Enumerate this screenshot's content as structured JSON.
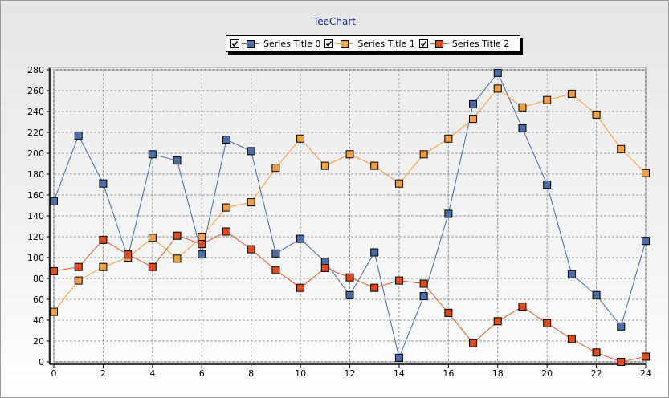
{
  "chart_data": {
    "type": "line",
    "title": "TeeChart",
    "xlabel": "",
    "ylabel": "",
    "xlim": [
      0,
      24
    ],
    "ylim": [
      0,
      280
    ],
    "x_ticks": [
      "0",
      "2",
      "4",
      "6",
      "8",
      "10",
      "12",
      "14",
      "16",
      "18",
      "20",
      "22",
      "24"
    ],
    "y_ticks": [
      "0",
      "20",
      "40",
      "60",
      "80",
      "100",
      "120",
      "140",
      "160",
      "180",
      "200",
      "220",
      "240",
      "260",
      "280"
    ],
    "grid": true,
    "legend": "top",
    "x": [
      0,
      1,
      2,
      3,
      4,
      5,
      6,
      7,
      8,
      9,
      10,
      11,
      12,
      13,
      14,
      15,
      16,
      17,
      18,
      19,
      20,
      21,
      22,
      23,
      24
    ],
    "series": [
      {
        "name": "Series Title 0",
        "color": "#4a6aa5",
        "marker_color": "#4e6ea8",
        "checked": true,
        "values": [
          154,
          217,
          171,
          100,
          199,
          193,
          103,
          213,
          202,
          104,
          118,
          96,
          64,
          105,
          4,
          63,
          142,
          247,
          277,
          224,
          170,
          84,
          64,
          34,
          116
        ]
      },
      {
        "name": "Series Title 1",
        "color": "#f0a040",
        "marker_color": "#f0a040",
        "checked": true,
        "values": [
          48,
          78,
          91,
          100,
          119,
          99,
          120,
          148,
          153,
          186,
          214,
          188,
          199,
          188,
          171,
          199,
          214,
          233,
          262,
          244,
          251,
          257,
          237,
          204,
          181
        ]
      },
      {
        "name": "Series Title 2",
        "color": "#e0582a",
        "marker_color": "#e04a1c",
        "checked": true,
        "values": [
          87,
          91,
          117,
          103,
          91,
          121,
          113,
          125,
          108,
          88,
          71,
          90,
          81,
          71,
          78,
          75,
          47,
          18,
          39,
          53,
          37,
          22,
          9,
          0,
          5
        ]
      }
    ]
  }
}
